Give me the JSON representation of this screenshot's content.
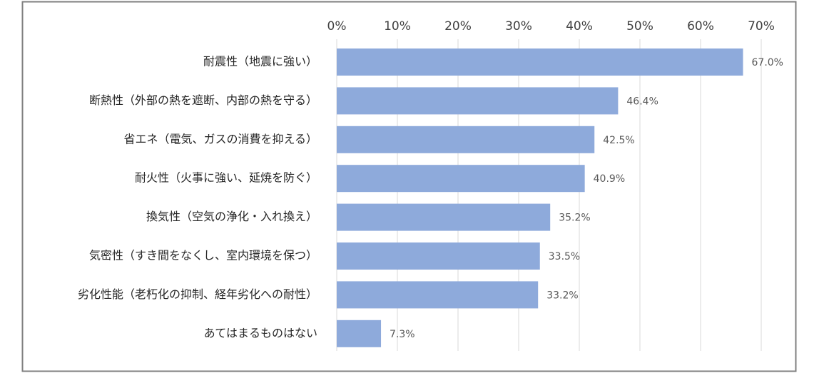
{
  "chart_data": {
    "type": "bar",
    "orientation": "horizontal",
    "categories": [
      "耐震性（地震に強い）",
      "断熱性（外部の熱を遮断、内部の熱を守る）",
      "省エネ（電気、ガスの消費を抑える）",
      "耐火性（火事に強い、延焼を防ぐ）",
      "換気性（空気の浄化・入れ換え）",
      "気密性（すき間をなくし、室内環境を保つ）",
      "劣化性能（老朽化の抑制、経年劣化への耐性）",
      "あてはまるものはない"
    ],
    "values": [
      67.0,
      46.4,
      42.5,
      40.9,
      35.2,
      33.5,
      33.2,
      7.3
    ],
    "data_labels": [
      "67.0%",
      "46.4%",
      "42.5%",
      "40.9%",
      "35.2%",
      "33.5%",
      "33.2%",
      "7.3%"
    ],
    "xlim": [
      0,
      70
    ],
    "x_ticks": [
      0,
      10,
      20,
      30,
      40,
      50,
      60,
      70
    ],
    "x_tick_labels": [
      "0%",
      "10%",
      "20%",
      "30%",
      "40%",
      "50%",
      "60%",
      "70%"
    ],
    "x_axis_position": "top",
    "grid": true,
    "legend": "none",
    "title": "",
    "xlabel": "",
    "ylabel": "",
    "colors": {
      "bar": "#8eaadb",
      "grid": "#d9d9d9",
      "frame": "#7f7f7f"
    }
  }
}
